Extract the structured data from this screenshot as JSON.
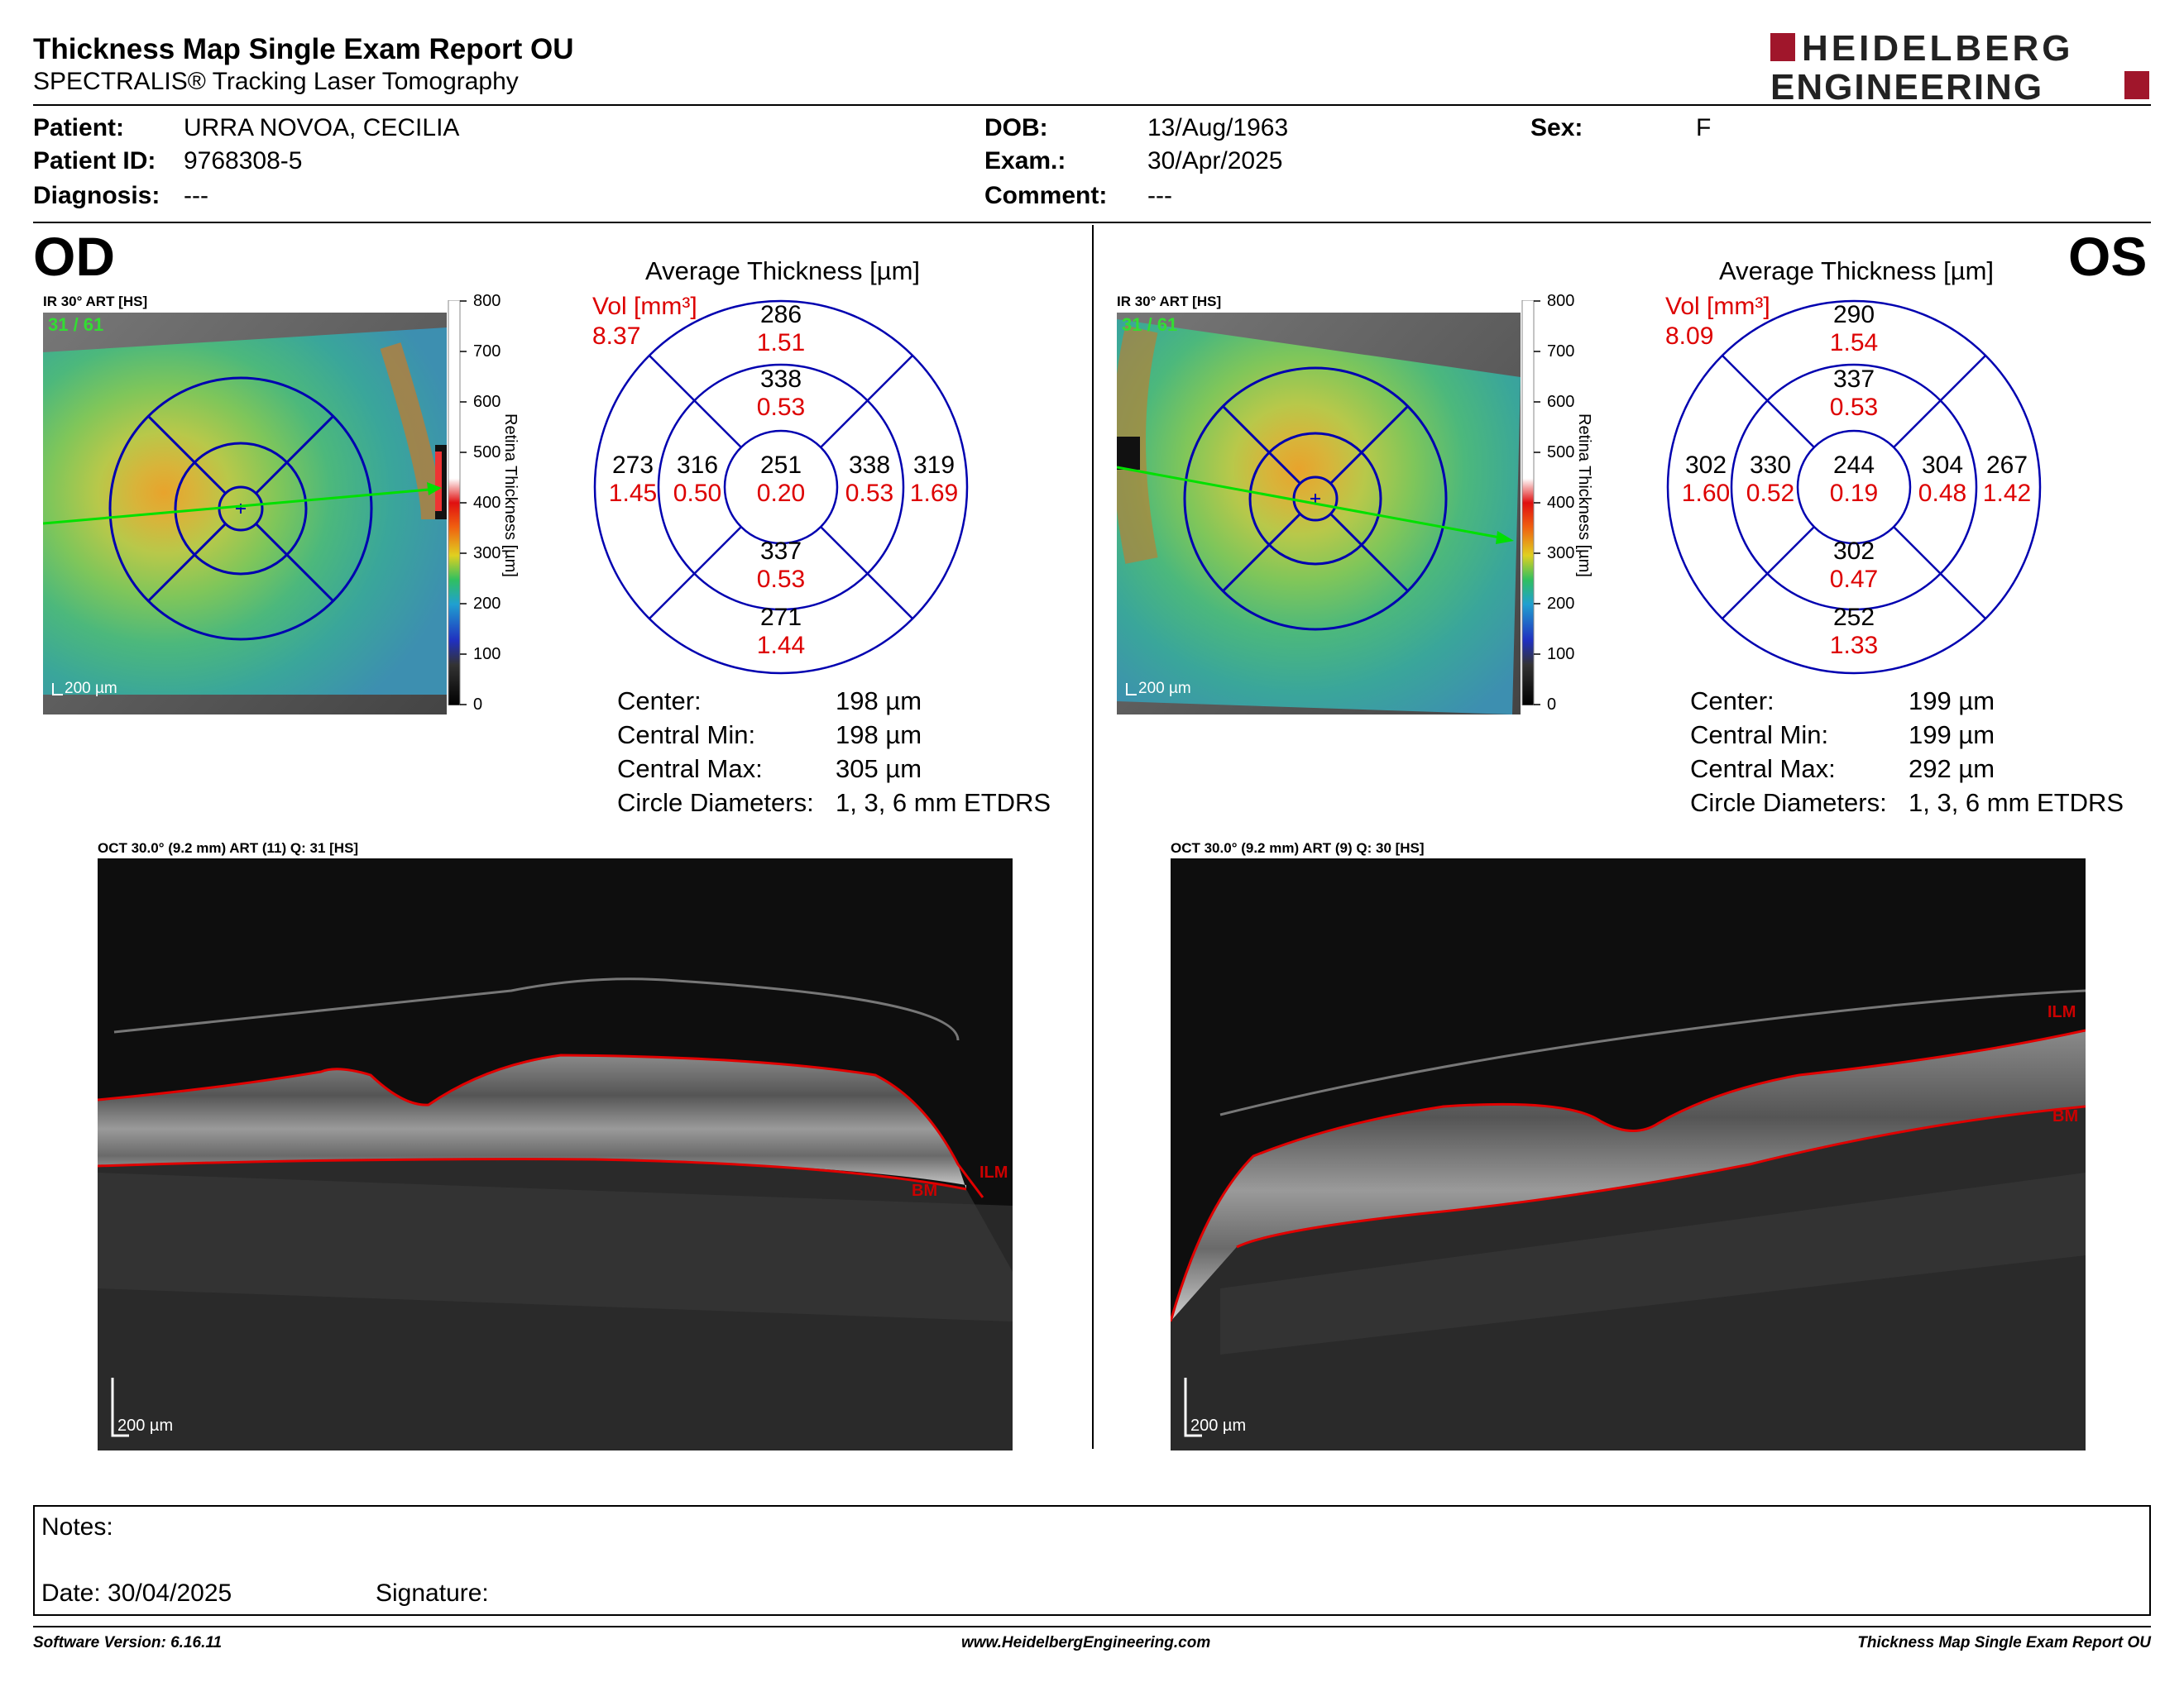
{
  "header": {
    "title": "Thickness Map Single Exam Report OU",
    "subtitle": "SPECTRALIS® Tracking Laser Tomography",
    "logo_line1": "HEIDELBERG",
    "logo_line2": "ENGINEERING"
  },
  "patient": {
    "patient_label": "Patient:",
    "patient_value": "URRA NOVOA, CECILIA",
    "id_label": "Patient ID:",
    "id_value": "9768308-5",
    "diagnosis_label": "Diagnosis:",
    "diagnosis_value": "---",
    "dob_label": "DOB:",
    "dob_value": "13/Aug/1963",
    "exam_label": "Exam.:",
    "exam_value": "30/Apr/2025",
    "comment_label": "Comment:",
    "comment_value": "---",
    "sex_label": "Sex:",
    "sex_value": "F"
  },
  "od": {
    "eye_label": "OD",
    "ir_label": "IR 30° ART [HS]",
    "quality": "31 / 61",
    "scale_bar": "200 µm",
    "colorbar_ticks": [
      "800",
      "700",
      "600",
      "500",
      "400",
      "300",
      "200",
      "100",
      "0"
    ],
    "colorbar_title": "Retina  Thickness [µm]",
    "avg_title": "Average Thickness [µm]",
    "vol_label": "Vol [mm³]",
    "vol_total": "8.37",
    "etdrs": {
      "outer_sup": [
        "286",
        "1.51"
      ],
      "inner_sup": [
        "338",
        "0.53"
      ],
      "outer_temp": [
        "273",
        "1.45"
      ],
      "inner_temp": [
        "316",
        "0.50"
      ],
      "center": [
        "251",
        "0.20"
      ],
      "inner_nas": [
        "338",
        "0.53"
      ],
      "outer_nas": [
        "319",
        "1.69"
      ],
      "inner_inf": [
        "337",
        "0.53"
      ],
      "outer_inf": [
        "271",
        "1.44"
      ]
    },
    "metrics": [
      {
        "label": "Center:",
        "value": "198 µm"
      },
      {
        "label": "Central Min:",
        "value": "198 µm"
      },
      {
        "label": "Central Max:",
        "value": "305 µm"
      },
      {
        "label": "Circle Diameters:",
        "value": "1, 3, 6 mm ETDRS"
      }
    ],
    "oct_label": "OCT 30.0° (9.2 mm) ART (11) Q: 31 [HS]",
    "oct_scale": "200 µm",
    "ilm": "ILM",
    "bm": "BM"
  },
  "os": {
    "eye_label": "OS",
    "ir_label": "IR 30° ART [HS]",
    "quality": "31 / 61",
    "scale_bar": "200 µm",
    "colorbar_ticks": [
      "800",
      "700",
      "600",
      "500",
      "400",
      "300",
      "200",
      "100",
      "0"
    ],
    "colorbar_title": "Retina  Thickness [µm]",
    "avg_title": "Average Thickness [µm]",
    "vol_label": "Vol [mm³]",
    "vol_total": "8.09",
    "etdrs": {
      "outer_sup": [
        "290",
        "1.54"
      ],
      "inner_sup": [
        "337",
        "0.53"
      ],
      "outer_temp": [
        "302",
        "1.60"
      ],
      "inner_temp": [
        "330",
        "0.52"
      ],
      "center": [
        "244",
        "0.19"
      ],
      "inner_nas": [
        "304",
        "0.48"
      ],
      "outer_nas": [
        "267",
        "1.42"
      ],
      "inner_inf": [
        "302",
        "0.47"
      ],
      "outer_inf": [
        "252",
        "1.33"
      ]
    },
    "metrics": [
      {
        "label": "Center:",
        "value": "199 µm"
      },
      {
        "label": "Central Min:",
        "value": "199 µm"
      },
      {
        "label": "Central Max:",
        "value": "292 µm"
      },
      {
        "label": "Circle Diameters:",
        "value": "1, 3, 6 mm ETDRS"
      }
    ],
    "oct_label": "OCT 30.0° (9.2 mm) ART (9) Q: 30 [HS]",
    "oct_scale": "200 µm",
    "ilm": "ILM",
    "bm": "BM"
  },
  "notes": {
    "notes_label": "Notes:",
    "date_label": "Date: 30/04/2025",
    "signature_label": "Signature:"
  },
  "footer": {
    "software": "Software Version: 6.16.11",
    "website": "www.HeidelbergEngineering.com",
    "report": "Thickness Map Single Exam Report OU"
  },
  "colors": {
    "vol_red": "#d00000",
    "etdrs_blue": "#0000b0",
    "logo_red": "#a0162b",
    "segmentation_red": "#e00000"
  }
}
